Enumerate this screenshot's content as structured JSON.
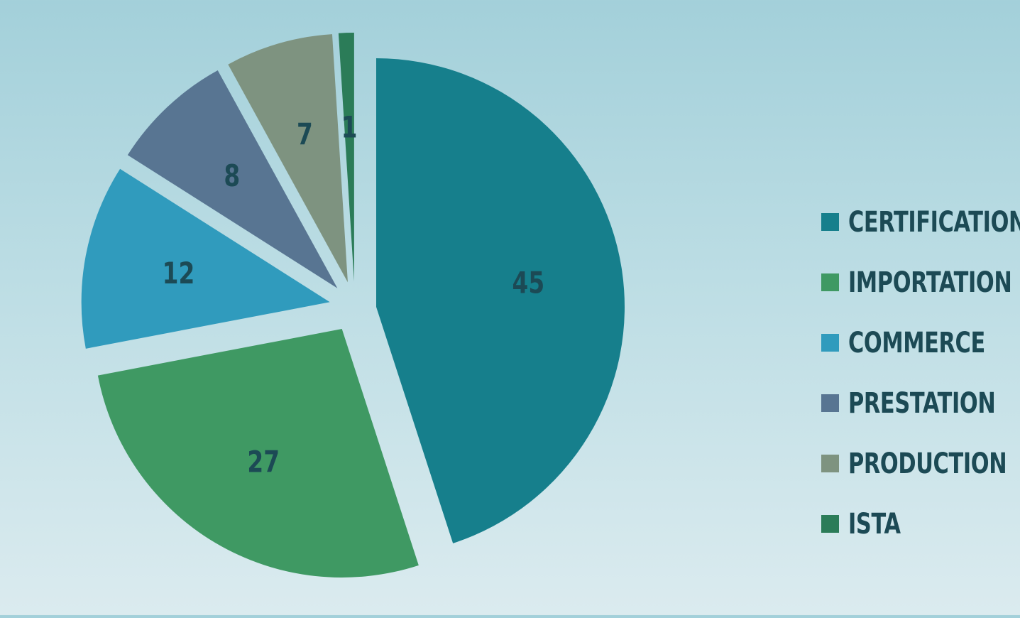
{
  "chart_data": {
    "type": "pie",
    "exploded": true,
    "title": "",
    "legend_position": "right",
    "categories": [
      "CERTIFICATION",
      "IMPORTATION",
      "COMMERCE",
      "PRESTATION",
      "PRODUCTION",
      "ISTA"
    ],
    "values": [
      45,
      27,
      12,
      8,
      7,
      1
    ],
    "labels": [
      "45",
      "27",
      "12",
      "8",
      "7",
      "1"
    ],
    "colors": [
      "#167f8c",
      "#3f9963",
      "#309bbd",
      "#587592",
      "#7e9380",
      "#2b7c58"
    ]
  }
}
